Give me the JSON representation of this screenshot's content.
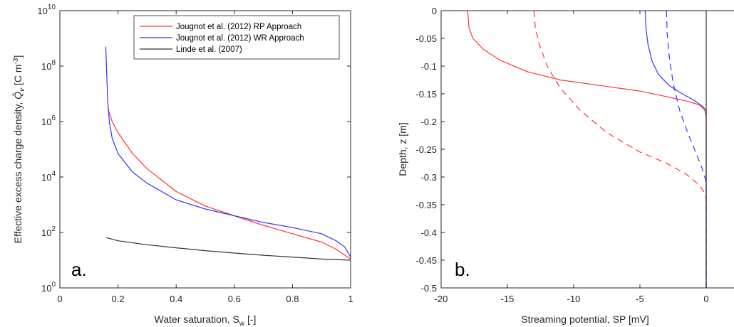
{
  "chart_data": [
    {
      "type": "line",
      "panel_label": "a.",
      "xlabel_main": "Water saturation, S",
      "xlabel_sub": "w",
      "xlabel_tail": " [-]",
      "ylabel_main": "Effective excess charge density, ",
      "ylabel_symbol": "Q̂",
      "ylabel_symbol_sub": "v",
      "ylabel_units": " [C m",
      "ylabel_units_sup": "-3",
      "ylabel_units_tail": "]",
      "xlim": [
        0,
        1
      ],
      "ylim": [
        1,
        10000000000
      ],
      "yscale": "log",
      "grid": false,
      "xticks": [
        "0",
        "0.2",
        "0.4",
        "0.6",
        "0.8",
        "1"
      ],
      "xtick_values": [
        0,
        0.2,
        0.4,
        0.6,
        0.8,
        1
      ],
      "yticks": [
        {
          "value": 1,
          "base": "10",
          "exp": "0"
        },
        {
          "value": 100,
          "base": "10",
          "exp": "2"
        },
        {
          "value": 10000,
          "base": "10",
          "exp": "4"
        },
        {
          "value": 1000000,
          "base": "10",
          "exp": "6"
        },
        {
          "value": 100000000,
          "base": "10",
          "exp": "8"
        },
        {
          "value": 10000000000,
          "base": "10",
          "exp": "10"
        }
      ],
      "legend_position": "top-right",
      "series": [
        {
          "name": "Jougnot et al. (2012) RP Approach",
          "color": "#ff3333",
          "x": [
            0.166,
            0.17,
            0.18,
            0.2,
            0.25,
            0.3,
            0.4,
            0.5,
            0.6,
            0.7,
            0.8,
            0.9,
            0.95,
            1.0
          ],
          "y": [
            3000000,
            2000000,
            1000000,
            400000,
            70000,
            20000,
            3000,
            900,
            400,
            180,
            90,
            45,
            25,
            11
          ]
        },
        {
          "name": "Jougnot et al. (2012) WR Approach",
          "color": "#3333ff",
          "x": [
            0.158,
            0.16,
            0.162,
            0.165,
            0.17,
            0.18,
            0.2,
            0.25,
            0.3,
            0.4,
            0.5,
            0.6,
            0.7,
            0.8,
            0.9,
            0.95,
            0.98,
            1.0
          ],
          "y": [
            500000000,
            100000000,
            30000000,
            5000000,
            1000000,
            250000,
            70000,
            15000,
            6000,
            1500,
            700,
            400,
            230,
            150,
            90,
            50,
            30,
            13
          ]
        },
        {
          "name": "Linde et al. (2007)",
          "color": "#333333",
          "x": [
            0.16,
            0.2,
            0.3,
            0.4,
            0.5,
            0.6,
            0.7,
            0.8,
            0.9,
            1.0
          ],
          "y": [
            65,
            50,
            36,
            28,
            22,
            18,
            15,
            13,
            11,
            10
          ]
        }
      ]
    },
    {
      "type": "line",
      "panel_label": "b.",
      "xlabel": "Streaming potential, SP [mV]",
      "ylabel": "Depth, z [m]",
      "xlim": [
        -20,
        5
      ],
      "ylim": [
        -0.5,
        0
      ],
      "grid": false,
      "xticks": [
        "-20",
        "-15",
        "-10",
        "-5",
        "0",
        "5"
      ],
      "xtick_values": [
        -20,
        -15,
        -10,
        -5,
        0,
        5
      ],
      "yticks": [
        "0",
        "-0.05",
        "-0.1",
        "-0.15",
        "-0.2",
        "-0.25",
        "-0.3",
        "-0.35",
        "-0.4",
        "-0.45",
        "-0.5"
      ],
      "ytick_values": [
        0,
        -0.05,
        -0.1,
        -0.15,
        -0.2,
        -0.25,
        -0.3,
        -0.35,
        -0.4,
        -0.45,
        -0.5
      ],
      "series": [
        {
          "color": "#ff3333",
          "style": "solid",
          "x": [
            -18,
            -17.9,
            -17.6,
            -16.8,
            -15.5,
            -13.5,
            -11,
            -8,
            -5,
            -3,
            -1.5,
            -0.5,
            -0.1,
            0,
            0
          ],
          "y": [
            0,
            -0.03,
            -0.05,
            -0.07,
            -0.09,
            -0.11,
            -0.125,
            -0.135,
            -0.145,
            -0.155,
            -0.163,
            -0.17,
            -0.18,
            -0.19,
            -0.5
          ]
        },
        {
          "color": "#ff3333",
          "style": "dashed",
          "x": [
            -13,
            -12.9,
            -12.6,
            -12,
            -11,
            -9.5,
            -7.5,
            -5,
            -3,
            -1.5,
            -0.5,
            -0.1,
            0,
            0
          ],
          "y": [
            0,
            -0.03,
            -0.06,
            -0.1,
            -0.14,
            -0.18,
            -0.22,
            -0.255,
            -0.275,
            -0.295,
            -0.315,
            -0.33,
            -0.34,
            -0.5
          ]
        },
        {
          "color": "#3333ff",
          "style": "solid",
          "x": [
            -4.6,
            -4.55,
            -4.4,
            -4.1,
            -3.6,
            -2.8,
            -1.8,
            -0.9,
            -0.3,
            0,
            0
          ],
          "y": [
            0,
            -0.03,
            -0.06,
            -0.09,
            -0.115,
            -0.135,
            -0.15,
            -0.162,
            -0.172,
            -0.18,
            -0.5
          ]
        },
        {
          "color": "#3333ff",
          "style": "dashed",
          "x": [
            -3,
            -2.95,
            -2.8,
            -2.5,
            -2,
            -1.4,
            -0.8,
            -0.3,
            -0.05,
            0,
            0
          ],
          "y": [
            0,
            -0.04,
            -0.08,
            -0.13,
            -0.18,
            -0.22,
            -0.255,
            -0.285,
            -0.305,
            -0.315,
            -0.5
          ]
        },
        {
          "color": "#333333",
          "style": "solid",
          "x": [
            0,
            0
          ],
          "y": [
            0,
            -0.5
          ]
        }
      ]
    }
  ]
}
